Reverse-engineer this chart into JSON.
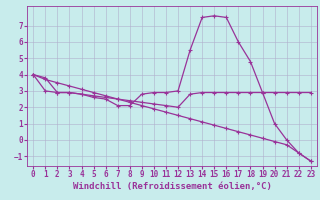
{
  "xlabel": "Windchill (Refroidissement éolien,°C)",
  "background_color": "#c8ecec",
  "line_color": "#993399",
  "xlim": [
    -0.5,
    23.5
  ],
  "ylim": [
    -1.6,
    8.2
  ],
  "yticks": [
    -1,
    0,
    1,
    2,
    3,
    4,
    5,
    6,
    7
  ],
  "xticks": [
    0,
    1,
    2,
    3,
    4,
    5,
    6,
    7,
    8,
    9,
    10,
    11,
    12,
    13,
    14,
    15,
    16,
    17,
    18,
    19,
    20,
    21,
    22,
    23
  ],
  "series": [
    [
      4.0,
      3.8,
      2.9,
      2.9,
      2.8,
      2.6,
      2.5,
      2.1,
      2.1,
      2.8,
      2.9,
      2.9,
      3.0,
      5.5,
      7.5,
      7.6,
      7.5,
      6.0,
      4.8,
      2.9,
      1.0,
      0.0,
      -0.8,
      -1.3
    ],
    [
      4.0,
      3.7,
      3.5,
      3.3,
      3.1,
      2.9,
      2.7,
      2.5,
      2.3,
      2.1,
      1.9,
      1.7,
      1.5,
      1.3,
      1.1,
      0.9,
      0.7,
      0.5,
      0.3,
      0.1,
      -0.1,
      -0.3,
      -0.8,
      -1.3
    ],
    [
      4.0,
      3.0,
      2.9,
      2.9,
      2.8,
      2.7,
      2.6,
      2.5,
      2.4,
      2.3,
      2.2,
      2.1,
      2.0,
      2.8,
      2.9,
      2.9,
      2.9,
      2.9,
      2.9,
      2.9,
      2.9,
      2.9,
      2.9,
      2.9
    ]
  ],
  "marker": "+",
  "markersize": 3,
  "linewidth": 0.9,
  "grid_color": "#b0b0cc",
  "tick_fontsize": 5.5,
  "label_fontsize": 6.5
}
